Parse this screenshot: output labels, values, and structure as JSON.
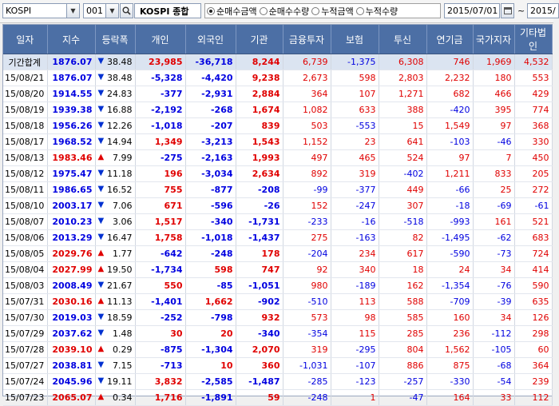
{
  "toolbar": {
    "market_select": "KOSPI",
    "code_select": "001",
    "search_icon": "search-icon",
    "index_name": "KOSPI 종합",
    "radios": [
      {
        "label": "순매수금액",
        "checked": true
      },
      {
        "label": "순매수수량",
        "checked": false
      },
      {
        "label": "누적금액",
        "checked": false
      },
      {
        "label": "누적수량",
        "checked": false
      }
    ],
    "date_from": "2015/07/01",
    "range_sep": "~",
    "date_to": "2015/"
  },
  "table": {
    "headers": [
      "일자",
      "지수",
      "등락폭",
      "개인",
      "외국인",
      "기관",
      "금융투자",
      "보험",
      "투신",
      "연기금",
      "국가지자",
      "기타법인"
    ],
    "total": {
      "date": "기간합계",
      "index": "1876.07",
      "dir": "down",
      "chg": "38.48",
      "vals": [
        "23,985",
        "-36,718",
        "8,244",
        "6,739",
        "-1,375",
        "6,308",
        "746",
        "1,969",
        "4,532"
      ]
    },
    "rows": [
      {
        "date": "15/08/21",
        "index": "1876.07",
        "dir": "down",
        "chg": "38.48",
        "vals": [
          "-5,328",
          "-4,420",
          "9,238",
          "2,673",
          "598",
          "2,803",
          "2,232",
          "180",
          "553"
        ]
      },
      {
        "date": "15/08/20",
        "index": "1914.55",
        "dir": "down",
        "chg": "24.83",
        "vals": [
          "-377",
          "-2,931",
          "2,884",
          "364",
          "107",
          "1,271",
          "682",
          "466",
          "429"
        ]
      },
      {
        "date": "15/08/19",
        "index": "1939.38",
        "dir": "down",
        "chg": "16.88",
        "vals": [
          "-2,192",
          "-268",
          "1,674",
          "1,082",
          "633",
          "388",
          "-420",
          "395",
          "774"
        ]
      },
      {
        "date": "15/08/18",
        "index": "1956.26",
        "dir": "down",
        "chg": "12.26",
        "vals": [
          "-1,018",
          "-207",
          "839",
          "503",
          "-553",
          "15",
          "1,549",
          "97",
          "368"
        ]
      },
      {
        "date": "15/08/17",
        "index": "1968.52",
        "dir": "down",
        "chg": "14.94",
        "vals": [
          "1,349",
          "-3,213",
          "1,543",
          "1,152",
          "23",
          "641",
          "-103",
          "-46",
          "330"
        ]
      },
      {
        "date": "15/08/13",
        "index": "1983.46",
        "dir": "up",
        "chg": "7.99",
        "vals": [
          "-275",
          "-2,163",
          "1,993",
          "497",
          "465",
          "524",
          "97",
          "7",
          "450"
        ]
      },
      {
        "date": "15/08/12",
        "index": "1975.47",
        "dir": "down",
        "chg": "11.18",
        "vals": [
          "196",
          "-3,034",
          "2,634",
          "892",
          "319",
          "-402",
          "1,211",
          "833",
          "205"
        ]
      },
      {
        "date": "15/08/11",
        "index": "1986.65",
        "dir": "down",
        "chg": "16.52",
        "vals": [
          "755",
          "-877",
          "-208",
          "-99",
          "-377",
          "449",
          "-66",
          "25",
          "272"
        ]
      },
      {
        "date": "15/08/10",
        "index": "2003.17",
        "dir": "down",
        "chg": "7.06",
        "vals": [
          "671",
          "-596",
          "-26",
          "152",
          "-247",
          "307",
          "-18",
          "-69",
          "-61"
        ]
      },
      {
        "date": "15/08/07",
        "index": "2010.23",
        "dir": "down",
        "chg": "3.06",
        "vals": [
          "1,517",
          "-340",
          "-1,731",
          "-233",
          "-16",
          "-518",
          "-993",
          "161",
          "521"
        ]
      },
      {
        "date": "15/08/06",
        "index": "2013.29",
        "dir": "down",
        "chg": "16.47",
        "vals": [
          "1,758",
          "-1,018",
          "-1,437",
          "275",
          "-163",
          "82",
          "-1,495",
          "-62",
          "683"
        ]
      },
      {
        "date": "15/08/05",
        "index": "2029.76",
        "dir": "up",
        "chg": "1.77",
        "vals": [
          "-642",
          "-248",
          "178",
          "-204",
          "234",
          "617",
          "-590",
          "-73",
          "724"
        ]
      },
      {
        "date": "15/08/04",
        "index": "2027.99",
        "dir": "up",
        "chg": "19.50",
        "vals": [
          "-1,734",
          "598",
          "747",
          "92",
          "340",
          "18",
          "24",
          "34",
          "414"
        ]
      },
      {
        "date": "15/08/03",
        "index": "2008.49",
        "dir": "down",
        "chg": "21.67",
        "vals": [
          "550",
          "-85",
          "-1,051",
          "980",
          "-189",
          "162",
          "-1,354",
          "-76",
          "590"
        ]
      },
      {
        "date": "15/07/31",
        "index": "2030.16",
        "dir": "up",
        "chg": "11.13",
        "vals": [
          "-1,401",
          "1,662",
          "-902",
          "-510",
          "113",
          "588",
          "-709",
          "-39",
          "635"
        ]
      },
      {
        "date": "15/07/30",
        "index": "2019.03",
        "dir": "down",
        "chg": "18.59",
        "vals": [
          "-252",
          "-798",
          "932",
          "573",
          "98",
          "585",
          "160",
          "34",
          "126"
        ]
      },
      {
        "date": "15/07/29",
        "index": "2037.62",
        "dir": "down",
        "chg": "1.48",
        "vals": [
          "30",
          "20",
          "-340",
          "-354",
          "115",
          "285",
          "236",
          "-112",
          "298"
        ]
      },
      {
        "date": "15/07/28",
        "index": "2039.10",
        "dir": "up",
        "chg": "0.29",
        "vals": [
          "-875",
          "-1,304",
          "2,070",
          "319",
          "-295",
          "804",
          "1,562",
          "-105",
          "60"
        ]
      },
      {
        "date": "15/07/27",
        "index": "2038.81",
        "dir": "down",
        "chg": "7.15",
        "vals": [
          "-713",
          "10",
          "360",
          "-1,031",
          "-107",
          "886",
          "875",
          "-68",
          "364"
        ]
      },
      {
        "date": "15/07/24",
        "index": "2045.96",
        "dir": "down",
        "chg": "19.11",
        "vals": [
          "3,832",
          "-2,585",
          "-1,487",
          "-285",
          "-123",
          "-257",
          "-330",
          "-54",
          "239"
        ]
      },
      {
        "date": "15/07/23",
        "index": "2065.07",
        "dir": "up",
        "chg": "0.34",
        "vals": [
          "1,716",
          "-1,891",
          "59",
          "-248",
          "1",
          "-47",
          "164",
          "33",
          "112"
        ]
      }
    ]
  },
  "colors": {
    "up": "#e00000",
    "down": "#0000e0",
    "header_bg": "#4c6fa5"
  }
}
